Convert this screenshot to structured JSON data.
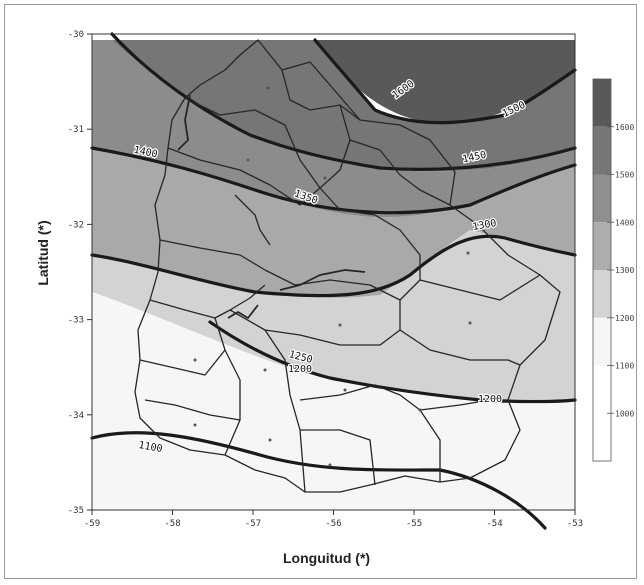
{
  "figure": {
    "xlabel": "Longuitud (*)",
    "ylabel": "Latitud (*)"
  },
  "chart_data": {
    "type": "contour-map",
    "xlabel": "Longuitud (*)",
    "ylabel": "Latitud (*)",
    "x_ticks": [
      "-59",
      "-58",
      "-57",
      "-56",
      "-55",
      "-54",
      "-53"
    ],
    "y_ticks": [
      "-30",
      "-31",
      "-32",
      "-33",
      "-34",
      "-35"
    ],
    "xlim": [
      -59,
      -53
    ],
    "ylim": [
      -35,
      -30
    ],
    "grid": false,
    "colorbar": {
      "placement": "right",
      "levels": [
        "1600",
        "1500",
        "1400",
        "1300",
        "1200",
        "1100",
        "1000"
      ],
      "shades": [
        "#595959",
        "#777777",
        "#8f8f8f",
        "#adadad",
        "#d3d3d3",
        "#f6f6f6",
        "#ffffff",
        "#ffffff"
      ]
    },
    "contour_labels": [
      "1600",
      "1500",
      "1450",
      "1400",
      "1350",
      "1300",
      "1250",
      "1200",
      "1200",
      "1100"
    ]
  }
}
